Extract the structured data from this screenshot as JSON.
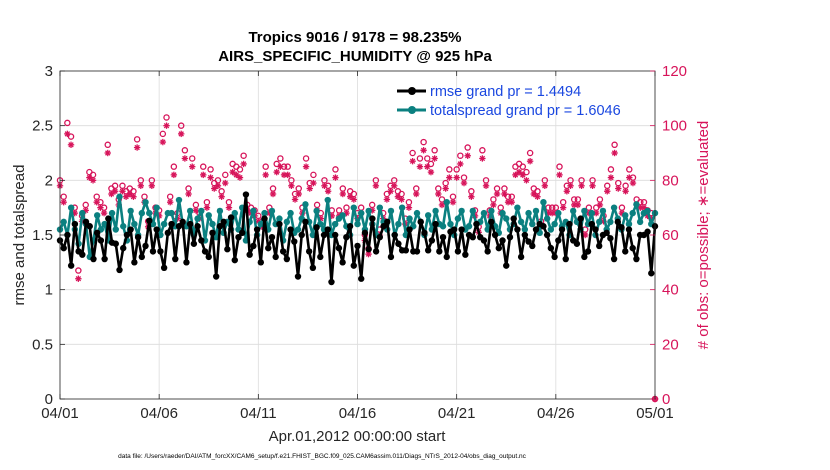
{
  "chart_data": {
    "type": "line",
    "title": "Tropics 9016 / 9178 = 98.235%",
    "subtitle": "AIRS_SPECIFIC_HUMIDITY @ 925 hPa",
    "xlabel": "Apr.01,2012 00:00:00 start",
    "ylabel_left": "rmse and totalspread",
    "ylabel_right": "# of obs: o=possible; ∗=evaluated",
    "x_tick_labels": [
      "04/01",
      "04/06",
      "04/11",
      "04/16",
      "04/21",
      "04/26",
      "05/01"
    ],
    "xlim": [
      0,
      30
    ],
    "ylim_left": [
      0,
      3
    ],
    "ylim_right": [
      0,
      120
    ],
    "y_left_ticks": [
      "0",
      "0.5",
      "1",
      "1.5",
      "2",
      "2.5",
      "3"
    ],
    "y_right_ticks": [
      "0",
      "20",
      "40",
      "60",
      "80",
      "100",
      "120"
    ],
    "grid": true,
    "legend_position": "top-right",
    "colors": {
      "rmse": "#000000",
      "spread": "#0b8080",
      "obs": "#d7145a",
      "legend_text": "#1a47e0"
    },
    "series": [
      {
        "name": "rmse grand pr = 1.4494",
        "axis": "left",
        "values": [
          1.45,
          1.38,
          1.5,
          1.22,
          1.6,
          1.35,
          1.32,
          1.62,
          1.58,
          1.28,
          1.52,
          1.45,
          1.28,
          1.65,
          1.43,
          1.42,
          1.18,
          1.38,
          1.5,
          1.55,
          1.25,
          1.48,
          1.3,
          1.4,
          1.63,
          1.35,
          1.55,
          1.35,
          1.2,
          1.52,
          1.6,
          1.28,
          1.58,
          1.62,
          1.25,
          1.6,
          1.42,
          1.58,
          1.45,
          1.35,
          1.3,
          1.52,
          1.12,
          1.58,
          1.62,
          1.37,
          1.66,
          1.27,
          1.48,
          1.52,
          1.87,
          1.32,
          1.4,
          1.55,
          1.25,
          1.65,
          1.38,
          1.48,
          1.3,
          1.6,
          1.35,
          1.28,
          1.55,
          1.44,
          1.12,
          1.5,
          1.62,
          1.35,
          1.2,
          1.57,
          1.3,
          1.5,
          1.55,
          1.07,
          1.5,
          1.38,
          1.25,
          1.48,
          1.58,
          1.22,
          1.4,
          1.1,
          1.52,
          1.37,
          1.65,
          1.35,
          1.48,
          1.58,
          1.62,
          1.3,
          1.5,
          1.42,
          1.36,
          1.36,
          1.55,
          1.35,
          1.35,
          1.62,
          1.52,
          1.36,
          1.45,
          1.6,
          1.35,
          1.48,
          1.3,
          1.53,
          1.55,
          1.35,
          1.55,
          1.32,
          1.5,
          1.48,
          1.6,
          1.48,
          1.45,
          1.35,
          1.62,
          1.5,
          1.38,
          1.45,
          1.22,
          1.48,
          1.65,
          1.55,
          1.3,
          1.5,
          1.44,
          1.4,
          1.55,
          1.6,
          1.58,
          1.5,
          1.38,
          1.3,
          1.45,
          1.55,
          1.28,
          1.6,
          1.45,
          1.42,
          1.65,
          1.3,
          1.35,
          1.6,
          1.55,
          1.4,
          1.5,
          1.52,
          1.47,
          1.28,
          1.62,
          1.57,
          1.35,
          1.55,
          1.38,
          1.28,
          1.5,
          1.5,
          1.53,
          1.15,
          1.58
        ]
      },
      {
        "name": "totalspread grand pr = 1.6046",
        "axis": "left",
        "values": [
          1.55,
          1.62,
          1.5,
          1.75,
          1.55,
          1.42,
          1.7,
          1.6,
          1.3,
          1.45,
          1.68,
          1.55,
          1.6,
          1.45,
          1.7,
          1.55,
          1.85,
          1.58,
          1.45,
          1.72,
          1.6,
          1.5,
          1.7,
          1.8,
          1.7,
          1.6,
          1.75,
          1.5,
          1.6,
          1.7,
          1.7,
          1.58,
          1.82,
          1.6,
          1.58,
          1.72,
          1.5,
          1.65,
          1.72,
          1.45,
          1.68,
          1.6,
          1.48,
          1.72,
          1.52,
          1.62,
          1.55,
          1.7,
          1.55,
          1.75,
          1.45,
          1.62,
          1.72,
          1.5,
          1.6,
          1.7,
          1.55,
          1.72,
          1.6,
          1.65,
          1.45,
          1.62,
          1.7,
          1.52,
          1.55,
          1.65,
          1.78,
          1.62,
          1.5,
          1.72,
          1.6,
          1.55,
          1.82,
          1.5,
          1.6,
          1.65,
          1.68,
          1.58,
          1.5,
          1.75,
          1.6,
          1.7,
          1.55,
          1.72,
          1.6,
          1.5,
          1.75,
          1.62,
          1.55,
          1.72,
          1.5,
          1.6,
          1.75,
          1.5,
          1.65,
          1.58,
          1.7,
          1.62,
          1.5,
          1.68,
          1.55,
          1.72,
          1.6,
          1.58,
          1.8,
          1.6,
          1.5,
          1.65,
          1.72,
          1.55,
          1.58,
          1.72,
          1.6,
          1.62,
          1.7,
          1.55,
          1.72,
          1.58,
          1.52,
          1.7,
          1.65,
          1.55,
          1.6,
          1.75,
          1.62,
          1.55,
          1.7,
          1.6,
          1.72,
          1.52,
          1.8,
          1.65,
          1.55,
          1.6,
          1.7,
          1.58,
          1.62,
          1.5,
          1.72,
          1.62,
          1.55,
          1.72,
          1.6,
          1.7,
          1.5,
          1.62,
          1.72,
          1.55,
          1.62,
          1.75,
          1.65,
          1.55,
          1.68,
          1.6,
          1.7,
          1.78,
          1.62,
          1.7,
          1.72,
          1.6,
          1.7
        ]
      },
      {
        "name": "possible",
        "axis": "right",
        "marker": "o",
        "values": [
          80,
          74,
          101,
          96,
          70,
          47,
          67,
          71,
          83,
          82,
          74,
          72,
          70,
          93,
          77,
          78,
          73,
          78,
          76,
          77,
          76,
          95,
          80,
          74,
          65,
          80,
          70,
          69,
          97,
          103,
          74,
          85,
          68,
          100,
          91,
          77,
          88,
          71,
          68,
          85,
          72,
          84,
          79,
          80,
          76,
          82,
          72,
          86,
          85,
          84,
          89,
          71,
          70,
          69,
          67,
          65,
          85,
          70,
          77,
          86,
          88,
          85,
          85,
          80,
          75,
          77,
          70,
          88,
          79,
          82,
          71,
          68,
          80,
          78,
          69,
          84,
          69,
          77,
          70,
          76,
          75,
          68,
          70,
          60,
          55,
          71,
          80,
          62,
          68,
          75,
          78,
          80,
          76,
          75,
          66,
          72,
          90,
          77,
          88,
          94,
          88,
          86,
          91,
          77,
          73,
          79,
          84,
          74,
          84,
          89,
          81,
          92,
          76,
          69,
          63,
          91,
          80,
          69,
          73,
          77,
          70,
          77,
          74,
          74,
          85,
          86,
          85,
          83,
          90,
          77,
          76,
          65,
          80,
          70,
          70,
          70,
          85,
          72,
          78,
          80,
          73,
          73,
          80,
          62,
          70,
          80,
          70,
          73,
          67,
          78,
          84,
          93,
          79,
          70,
          78,
          84,
          81,
          73,
          72,
          72,
          69,
          68,
          0
        ]
      },
      {
        "name": "evaluated",
        "axis": "right",
        "marker": "*",
        "values": [
          78,
          72,
          97,
          93,
          68,
          44,
          65,
          69,
          81,
          80,
          72,
          70,
          68,
          90,
          75,
          76,
          71,
          76,
          74,
          75,
          74,
          92,
          78,
          72,
          63,
          78,
          68,
          67,
          94,
          100,
          72,
          82,
          66,
          97,
          88,
          75,
          85,
          69,
          66,
          82,
          70,
          81,
          77,
          78,
          74,
          79,
          70,
          83,
          82,
          81,
          86,
          69,
          68,
          67,
          65,
          63,
          82,
          68,
          75,
          83,
          85,
          82,
          82,
          78,
          73,
          75,
          68,
          85,
          77,
          79,
          69,
          66,
          78,
          76,
          67,
          81,
          67,
          75,
          68,
          74,
          73,
          66,
          68,
          58,
          53,
          69,
          78,
          60,
          66,
          73,
          76,
          78,
          74,
          73,
          64,
          70,
          87,
          75,
          85,
          91,
          85,
          83,
          88,
          75,
          71,
          77,
          81,
          72,
          81,
          86,
          79,
          89,
          74,
          67,
          61,
          88,
          78,
          67,
          71,
          75,
          68,
          75,
          72,
          72,
          82,
          83,
          82,
          80,
          87,
          75,
          74,
          63,
          78,
          68,
          68,
          68,
          82,
          70,
          76,
          78,
          71,
          71,
          78,
          60,
          68,
          78,
          68,
          71,
          65,
          76,
          81,
          90,
          77,
          68,
          76,
          81,
          79,
          71,
          70,
          70,
          67,
          66,
          0
        ]
      }
    ],
    "footnote": "data file: /Users/raeder/DAI/ATM_forcXX/CAM6_setup/f.e21.FHIST_BGC.f09_025.CAM6assim.011/Diags_NTrS_2012-04/obs_diag_output.nc"
  }
}
